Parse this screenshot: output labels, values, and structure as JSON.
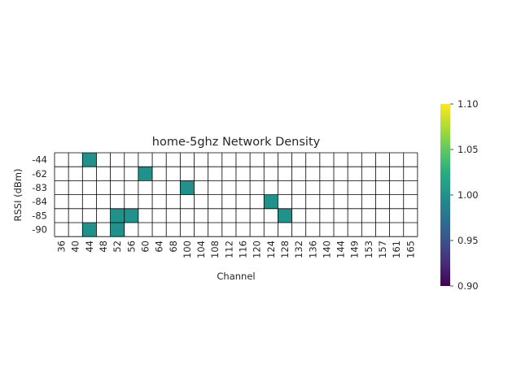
{
  "chart_data": {
    "type": "heatmap",
    "title": "home-5ghz Network Density",
    "xlabel": "Channel",
    "ylabel": "RSSI (dBm)",
    "x_categories": [
      "36",
      "40",
      "44",
      "48",
      "52",
      "56",
      "60",
      "64",
      "68",
      "100",
      "104",
      "108",
      "112",
      "116",
      "120",
      "124",
      "128",
      "132",
      "136",
      "140",
      "144",
      "149",
      "153",
      "157",
      "161",
      "165"
    ],
    "y_categories": [
      "-44",
      "-62",
      "-83",
      "-84",
      "-85",
      "-90"
    ],
    "cells": [
      {
        "x": "44",
        "y": "-44",
        "value": 1
      },
      {
        "x": "60",
        "y": "-62",
        "value": 1
      },
      {
        "x": "100",
        "y": "-83",
        "value": 1
      },
      {
        "x": "124",
        "y": "-84",
        "value": 1
      },
      {
        "x": "52",
        "y": "-85",
        "value": 1
      },
      {
        "x": "56",
        "y": "-85",
        "value": 1
      },
      {
        "x": "128",
        "y": "-85",
        "value": 1
      },
      {
        "x": "44",
        "y": "-90",
        "value": 1
      },
      {
        "x": "52",
        "y": "-90",
        "value": 1
      }
    ],
    "colormap": "viridis",
    "cell_color": "#21918c",
    "colorbar": {
      "ticks": [
        "1.10",
        "1.05",
        "1.00",
        "0.95",
        "0.90"
      ],
      "range": [
        0.9,
        1.1
      ]
    },
    "grid": true
  }
}
